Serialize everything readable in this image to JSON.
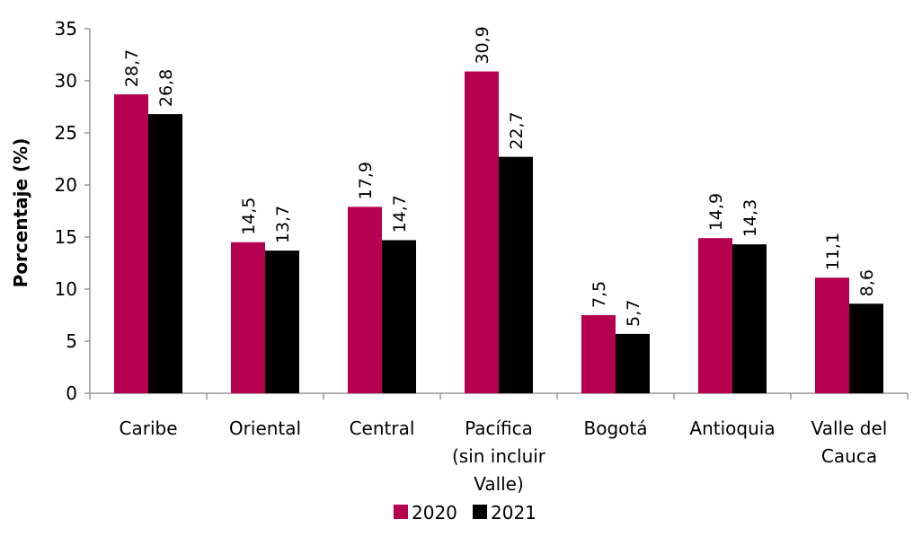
{
  "chart_data": {
    "type": "bar",
    "categories": [
      [
        "Caribe"
      ],
      [
        "Oriental"
      ],
      [
        "Central"
      ],
      [
        "Pacífica",
        "(sin incluir",
        "Valle)"
      ],
      [
        "Bogotá"
      ],
      [
        "Antioquia"
      ],
      [
        "Valle del",
        "Cauca"
      ]
    ],
    "series": [
      {
        "name": "2020",
        "color": "#b5004f",
        "values": [
          28.7,
          14.5,
          17.9,
          30.9,
          7.5,
          14.9,
          11.1
        ],
        "labels": [
          "28,7",
          "14,5",
          "17,9",
          "30,9",
          "7,5",
          "14,9",
          "11,1"
        ]
      },
      {
        "name": "2021",
        "color": "#000000",
        "values": [
          26.8,
          13.7,
          14.7,
          22.7,
          5.7,
          14.3,
          8.6
        ],
        "labels": [
          "26,8",
          "13,7",
          "14,7",
          "22,7",
          "5,7",
          "14,3",
          "8,6"
        ]
      }
    ],
    "ylabel": "Porcentaje (%)",
    "xlabel": "",
    "ylim": [
      0,
      35
    ],
    "yticks": [
      0,
      5,
      10,
      15,
      20,
      25,
      30,
      35
    ],
    "grid": false,
    "legend": "bottom-center"
  }
}
